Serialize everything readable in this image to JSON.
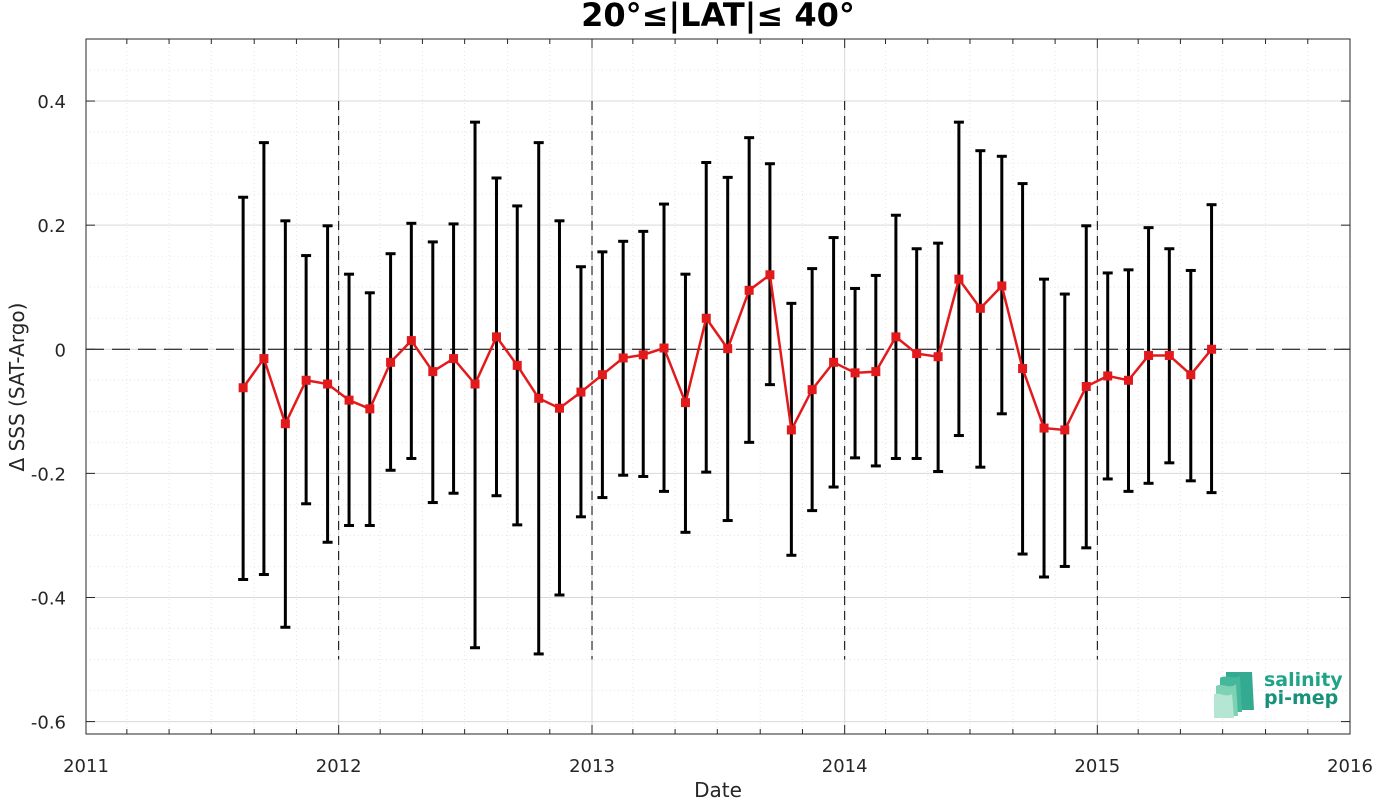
{
  "chart_data": {
    "type": "line",
    "title": "20°≤|LAT|≤ 40°",
    "xlabel": "Date",
    "ylabel": "Δ SSS (SAT-Argo)",
    "xlim": [
      "2011-01-01",
      "2016-01-01"
    ],
    "ylim": [
      -0.62,
      0.5
    ],
    "x_ticks": [
      "2011",
      "2012",
      "2013",
      "2014",
      "2015",
      "2016"
    ],
    "y_ticks": [
      "0.4",
      "0.2",
      "0",
      "-0.2",
      "-0.4",
      "-0.6"
    ],
    "y_tick_values": [
      0.4,
      0.2,
      0,
      -0.2,
      -0.4,
      -0.6
    ],
    "grid": true,
    "year_boundary_lines": [
      "2012-01-01",
      "2013-01-01",
      "2014-01-01",
      "2015-01-01"
    ],
    "zero_line": 0,
    "series": [
      {
        "color": "#e31a1c",
        "errorbar_color": "#000000",
        "x": [
          "2011-08-16",
          "2011-09-15",
          "2011-10-16",
          "2011-11-15",
          "2011-12-16",
          "2012-01-16",
          "2012-02-15",
          "2012-03-16",
          "2012-04-15",
          "2012-05-16",
          "2012-06-15",
          "2012-07-16",
          "2012-08-16",
          "2012-09-15",
          "2012-10-16",
          "2012-11-15",
          "2012-12-16",
          "2013-01-16",
          "2013-02-15",
          "2013-03-16",
          "2013-04-15",
          "2013-05-16",
          "2013-06-15",
          "2013-07-16",
          "2013-08-16",
          "2013-09-15",
          "2013-10-16",
          "2013-11-15",
          "2013-12-16",
          "2014-01-16",
          "2014-02-15",
          "2014-03-16",
          "2014-04-15",
          "2014-05-16",
          "2014-06-15",
          "2014-07-16",
          "2014-08-16",
          "2014-09-15",
          "2014-10-16",
          "2014-11-15",
          "2014-12-16",
          "2015-01-16",
          "2015-02-15",
          "2015-03-16",
          "2015-04-15",
          "2015-05-16",
          "2015-06-15"
        ],
        "y": [
          -0.062,
          -0.015,
          -0.12,
          -0.05,
          -0.056,
          -0.082,
          -0.096,
          -0.021,
          0.014,
          -0.036,
          -0.015,
          -0.056,
          0.02,
          -0.026,
          -0.079,
          -0.095,
          -0.069,
          -0.041,
          -0.014,
          -0.009,
          0.002,
          -0.086,
          0.05,
          0.001,
          0.095,
          0.12,
          -0.13,
          -0.065,
          -0.021,
          -0.038,
          -0.036,
          0.02,
          -0.007,
          -0.012,
          0.113,
          0.066,
          0.102,
          -0.031,
          -0.127,
          -0.13,
          -0.06,
          -0.043,
          -0.05,
          -0.01,
          -0.01,
          -0.041,
          0.0
        ],
        "upper": [
          0.245,
          0.333,
          0.207,
          0.151,
          0.199,
          0.121,
          0.091,
          0.154,
          0.203,
          0.173,
          0.202,
          0.366,
          0.276,
          0.231,
          0.333,
          0.207,
          0.133,
          0.157,
          0.174,
          0.19,
          0.234,
          0.121,
          0.301,
          0.277,
          0.341,
          0.299,
          0.074,
          0.13,
          0.18,
          0.098,
          0.119,
          0.216,
          0.162,
          0.171,
          0.366,
          0.32,
          0.311,
          0.267,
          0.113,
          0.089,
          0.199,
          0.123,
          0.128,
          0.196,
          0.162,
          0.127,
          0.233
        ],
        "lower": [
          -0.371,
          -0.363,
          -0.448,
          -0.249,
          -0.311,
          -0.284,
          -0.284,
          -0.195,
          -0.176,
          -0.247,
          -0.232,
          -0.481,
          -0.236,
          -0.283,
          -0.491,
          -0.396,
          -0.27,
          -0.239,
          -0.203,
          -0.205,
          -0.229,
          -0.295,
          -0.198,
          -0.276,
          -0.15,
          -0.057,
          -0.332,
          -0.26,
          -0.222,
          -0.175,
          -0.188,
          -0.176,
          -0.176,
          -0.197,
          -0.139,
          -0.19,
          -0.104,
          -0.33,
          -0.367,
          -0.35,
          -0.32,
          -0.209,
          -0.229,
          -0.216,
          -0.183,
          -0.212,
          -0.231
        ]
      }
    ]
  },
  "logo": {
    "line1": "salinity",
    "line2": "pi-mep"
  }
}
